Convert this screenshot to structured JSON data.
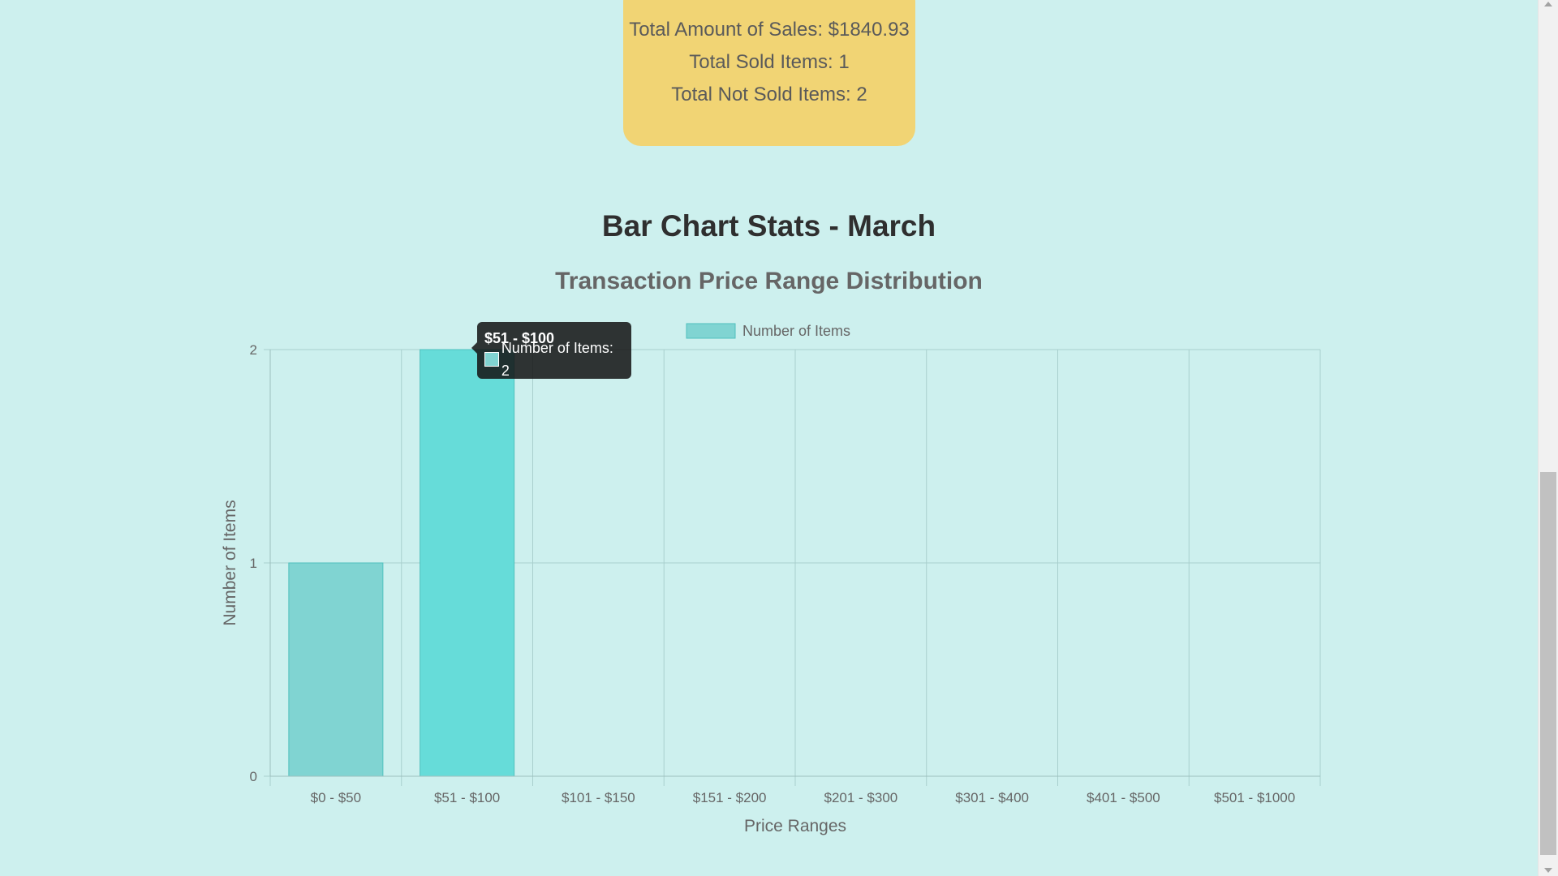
{
  "summary": {
    "total_amount": "Total Amount of Sales: $1840.93",
    "total_sold": "Total Sold Items: 1",
    "total_not_sold": "Total Not Sold Items: 2"
  },
  "heading": "Bar Chart Stats - March",
  "tooltip": {
    "title": "$51 - $100",
    "body": "Number of Items: 2",
    "swatch_color": "#80d4d2"
  },
  "colors": {
    "background": "#cdf0ee",
    "card": "#f1d474",
    "bar": "#80d4d2",
    "bar_hover": "#66dcd9",
    "bar_border": "#4fc0bd",
    "grid": "#a9cfcd"
  },
  "chart_data": {
    "type": "bar",
    "title": "Transaction Price Range Distribution",
    "categories": [
      "$0 - $50",
      "$51 - $100",
      "$101 - $150",
      "$151 - $200",
      "$201 - $300",
      "$301 - $400",
      "$401 - $500",
      "$501 - $1000"
    ],
    "series": [
      {
        "name": "Number of Items",
        "values": [
          1,
          2,
          0,
          0,
          0,
          0,
          0,
          0
        ]
      }
    ],
    "xlabel": "Price Ranges",
    "ylabel": "Number of Items",
    "ylim": [
      0,
      2
    ],
    "yticks": [
      0,
      1,
      2
    ],
    "legend": "top-center",
    "grid": true,
    "highlighted_category": "$51 - $100"
  }
}
